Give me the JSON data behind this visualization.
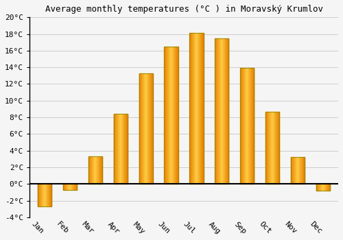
{
  "title": "Average monthly temperatures (°C ) in Moravský Krumlov",
  "months": [
    "Jan",
    "Feb",
    "Mar",
    "Apr",
    "May",
    "Jun",
    "Jul",
    "Aug",
    "Sep",
    "Oct",
    "Nov",
    "Dec"
  ],
  "temperatures": [
    -2.7,
    -0.7,
    3.3,
    8.4,
    13.3,
    16.5,
    18.1,
    17.5,
    13.9,
    8.7,
    3.2,
    -0.8
  ],
  "bar_color_center": "#FFB833",
  "bar_color_edge": "#E88000",
  "bar_edge_color": "#999900",
  "background_color": "#f5f5f5",
  "plot_bg_color": "#f5f5f5",
  "grid_color": "#cccccc",
  "ylim": [
    -4,
    20
  ],
  "yticks": [
    -4,
    -2,
    0,
    2,
    4,
    6,
    8,
    10,
    12,
    14,
    16,
    18,
    20
  ],
  "title_fontsize": 9,
  "tick_fontsize": 8,
  "font_family": "monospace",
  "bar_width": 0.55,
  "xlabel_rotation": -45
}
